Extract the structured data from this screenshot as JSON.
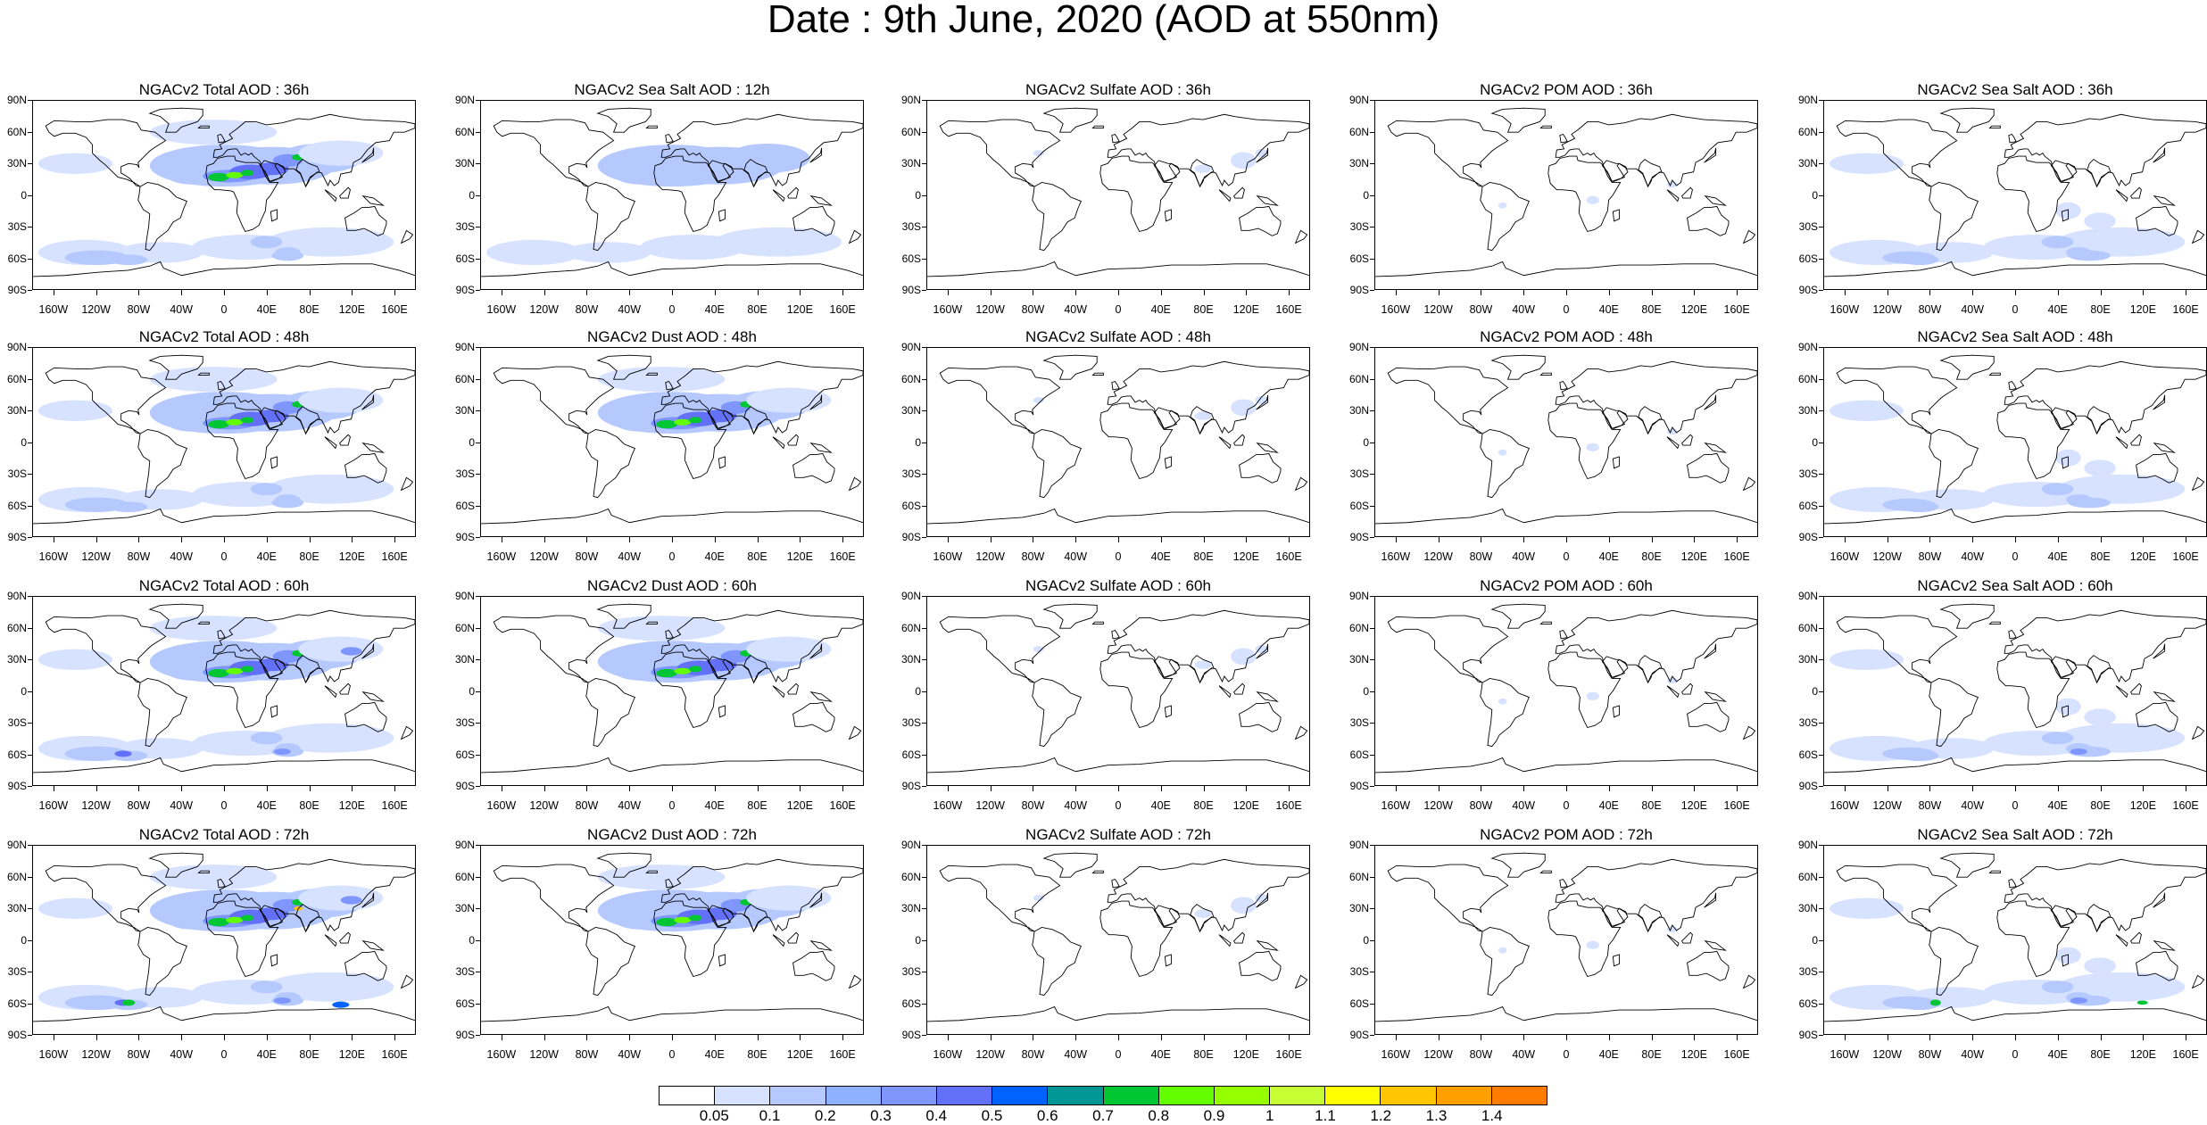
{
  "title": "Date : 9th June, 2020 (AOD at 550nm)",
  "panels": [
    [
      "NGACv2 Total AOD : 36h",
      "NGACv2 Sea Salt  AOD : 12h",
      "NGACv2 Sulfate AOD : 36h",
      "NGACv2 POM AOD : 36h",
      "NGACv2 Sea Salt AOD : 36h"
    ],
    [
      "NGACv2 Total AOD : 48h",
      "NGACv2 Dust AOD : 48h",
      "NGACv2 Sulfate AOD : 48h",
      "NGACv2 POM AOD : 48h",
      "NGACv2 Sea Salt AOD : 48h"
    ],
    [
      "NGACv2 Total AOD : 60h",
      "NGACv2 Dust AOD : 60h",
      "NGACv2 Sulfate AOD : 60h",
      "NGACv2 POM AOD : 60h",
      "NGACv2 Sea Salt AOD : 60h"
    ],
    [
      "NGACv2 Total AOD : 72h",
      "NGACv2 Dust AOD : 72h",
      "NGACv2 Sulfate AOD : 72h",
      "NGACv2 POM AOD : 72h",
      "NGACv2 Sea Salt  AOD : 72h"
    ]
  ],
  "lat_labels": [
    "90N",
    "60N",
    "30N",
    "0",
    "30S",
    "60S",
    "90S"
  ],
  "lon_labels": [
    "160W",
    "120W",
    "80W",
    "40W",
    "0",
    "40E",
    "80E",
    "120E",
    "160E"
  ],
  "colorbar": {
    "labels": [
      "0.05",
      "0.1",
      "0.2",
      "0.3",
      "0.4",
      "0.5",
      "0.6",
      "0.7",
      "0.8",
      "0.9",
      "1",
      "1.1",
      "1.2",
      "1.3",
      "1.4"
    ],
    "colors": [
      "#ffffff",
      "#d6e2ff",
      "#b5c9ff",
      "#8eb2ff",
      "#7f96ff",
      "#6370f8",
      "#0063ff",
      "#009696",
      "#00c633",
      "#63ff00",
      "#96ff00",
      "#c6ff33",
      "#ffff00",
      "#ffc600",
      "#ffa000",
      "#ff7c00",
      "#ff1900"
    ]
  }
}
